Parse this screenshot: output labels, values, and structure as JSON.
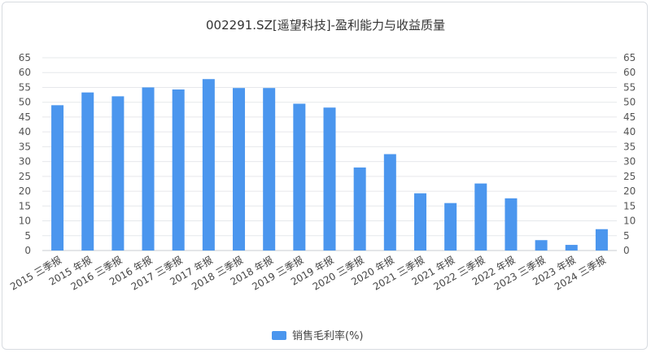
{
  "chart_data": {
    "type": "bar",
    "title": "002291.SZ[遥望科技]-盈利能力与收益质量",
    "categories": [
      "2015 三季报",
      "2015 年报",
      "2016 三季报",
      "2016 年报",
      "2017 三季报",
      "2017 年报",
      "2018 三季报",
      "2018 年报",
      "2019 三季报",
      "2019 年报",
      "2020 三季报",
      "2020 年报",
      "2021 三季报",
      "2021 年报",
      "2022 三季报",
      "2022 年报",
      "2023 三季报",
      "2023 年报",
      "2024 三季报"
    ],
    "series": [
      {
        "name": "销售毛利率(%)",
        "color": "#4b96ee",
        "values": [
          49,
          53.3,
          52,
          55,
          54.3,
          57.8,
          54.8,
          54.8,
          49.5,
          48.2,
          28,
          32.5,
          19.3,
          16,
          22.6,
          17.6,
          3.5,
          1.9,
          7.2
        ]
      }
    ],
    "ylim": [
      0,
      65
    ],
    "yticks": [
      "0",
      "5",
      "10",
      "15",
      "20",
      "25",
      "30",
      "35",
      "40",
      "45",
      "50",
      "55",
      "60",
      "65"
    ],
    "grid": true,
    "legend_position": "bottom-center"
  }
}
